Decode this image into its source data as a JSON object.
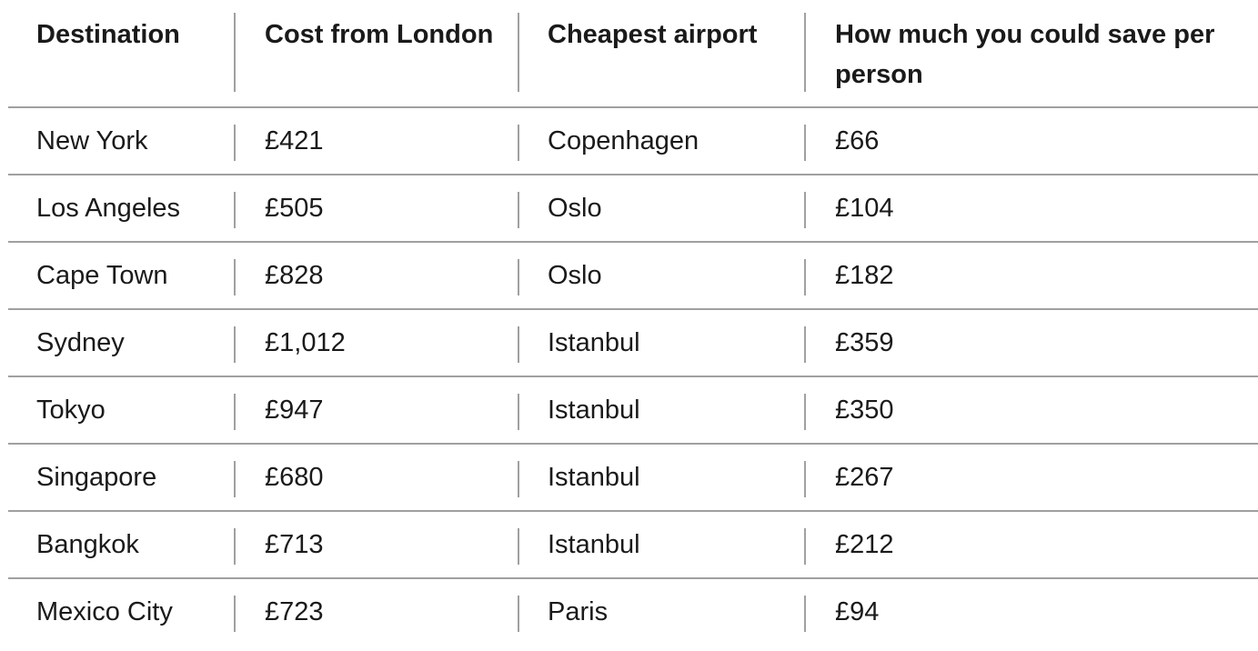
{
  "table": {
    "headers": [
      "Destination",
      "Cost from London",
      "Cheapest airport",
      "How much you could save per person"
    ],
    "rows": [
      [
        "New York",
        "£421",
        "Copenhagen",
        "£66"
      ],
      [
        "Los Angeles",
        "£505",
        "Oslo",
        "£104"
      ],
      [
        "Cape Town",
        "£828",
        "Oslo",
        "£182"
      ],
      [
        "Sydney",
        "£1,012",
        "Istanbul",
        "£359"
      ],
      [
        "Tokyo",
        "£947",
        "Istanbul",
        "£350"
      ],
      [
        "Singapore",
        "£680",
        "Istanbul",
        "£267"
      ],
      [
        "Bangkok",
        "£713",
        "Istanbul",
        "£212"
      ],
      [
        "Mexico City",
        "£723",
        "Paris",
        "£94"
      ]
    ]
  },
  "colors": {
    "text": "#1a1a1a",
    "rule": "#a0a0a0",
    "background": "#ffffff"
  }
}
